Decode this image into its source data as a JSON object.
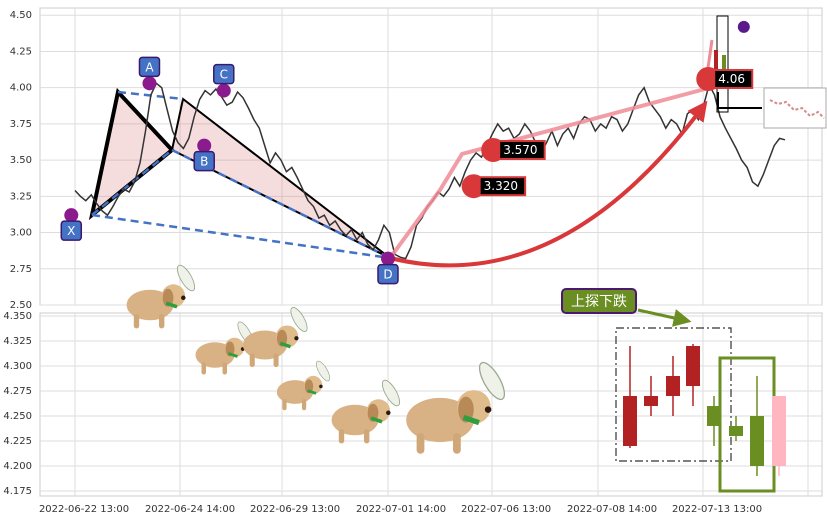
{
  "chart_data": [
    {
      "type": "line",
      "panel": "price",
      "grid": true,
      "y_ticks": [
        "4.50",
        "4.25",
        "4.00",
        "3.75",
        "3.50",
        "3.25",
        "3.00",
        "2.75",
        "2.50"
      ],
      "ylim": [
        2.5,
        4.55
      ],
      "x_ticks": [
        "2022-06-22 13:00",
        "2022-06-24 14:00",
        "2022-06-29 13:00",
        "2022-07-01 14:00",
        "2022-07-06 13:00",
        "2022-07-08 14:00",
        "2022-07-13 13:00"
      ],
      "series_line": {
        "color": "#333333",
        "y": [
          3.29,
          3.25,
          3.22,
          3.26,
          3.2,
          3.15,
          3.12,
          3.18,
          3.25,
          3.3,
          3.28,
          3.35,
          3.48,
          3.7,
          3.95,
          4.03,
          4.0,
          3.85,
          3.7,
          3.62,
          3.58,
          3.65,
          3.8,
          3.92,
          3.98,
          3.95,
          3.99,
          3.94,
          3.88,
          3.9,
          3.97,
          3.93,
          3.86,
          3.78,
          3.72,
          3.6,
          3.48,
          3.55,
          3.5,
          3.42,
          3.45,
          3.38,
          3.3,
          3.22,
          3.18,
          3.1,
          3.12,
          3.05,
          3.08,
          3.02,
          2.98,
          3.02,
          2.95,
          3.0,
          2.92,
          2.88,
          2.95,
          3.05,
          3.0,
          2.85,
          2.83,
          2.82,
          2.9,
          3.05,
          3.1,
          3.18,
          3.22,
          3.28,
          3.25,
          3.3,
          3.38,
          3.32,
          3.42,
          3.5,
          3.55,
          3.52,
          3.6,
          3.68,
          3.75,
          3.7,
          3.72,
          3.65,
          3.68,
          3.75,
          3.7,
          3.62,
          3.55,
          3.62,
          3.7,
          3.6,
          3.68,
          3.72,
          3.65,
          3.75,
          3.8,
          3.78,
          3.7,
          3.75,
          3.72,
          3.8,
          3.78,
          3.7,
          3.75,
          3.85,
          3.95,
          4.0,
          3.9,
          3.85,
          3.8,
          3.72,
          3.78,
          3.75,
          3.68,
          3.82,
          3.85,
          3.78,
          3.88,
          4.02,
          3.95,
          3.8,
          3.72,
          3.65,
          3.58,
          3.5,
          3.45,
          3.35,
          3.32,
          3.4,
          3.5,
          3.6,
          3.65,
          3.64
        ]
      },
      "pattern_points": [
        {
          "label": "X",
          "x": 0.04,
          "y": 3.12
        },
        {
          "label": "A",
          "x": 0.14,
          "y": 4.03
        },
        {
          "label": "B",
          "x": 0.21,
          "y": 3.6
        },
        {
          "label": "C",
          "x": 0.235,
          "y": 3.98
        },
        {
          "label": "D",
          "x": 0.445,
          "y": 2.82
        }
      ],
      "price_labels": [
        {
          "label": "3.320",
          "x": 0.575,
          "y": 3.32
        },
        {
          "label": "3.570",
          "x": 0.6,
          "y": 3.57
        },
        {
          "label": "4.06",
          "x": 0.875,
          "y": 4.06
        }
      ],
      "top_marker": {
        "x": 0.9,
        "y": 4.42
      }
    },
    {
      "type": "candlestick",
      "panel": "lower",
      "grid": true,
      "y_ticks": [
        "4.350",
        "4.325",
        "4.300",
        "4.275",
        "4.250",
        "4.225",
        "4.200",
        "4.175"
      ],
      "ylim": [
        4.17,
        4.353
      ],
      "annotation": "上探下跌",
      "candles": [
        {
          "o": 4.22,
          "h": 4.32,
          "l": 4.218,
          "c": 4.27,
          "color": "#b22222"
        },
        {
          "o": 4.26,
          "h": 4.29,
          "l": 4.25,
          "c": 4.27,
          "color": "#b22222"
        },
        {
          "o": 4.27,
          "h": 4.31,
          "l": 4.25,
          "c": 4.29,
          "color": "#b22222"
        },
        {
          "o": 4.28,
          "h": 4.322,
          "l": 4.26,
          "c": 4.32,
          "color": "#b22222"
        },
        {
          "o": 4.26,
          "h": 4.27,
          "l": 4.22,
          "c": 4.24,
          "color": "#6b8e23"
        },
        {
          "o": 4.24,
          "h": 4.25,
          "l": 4.225,
          "c": 4.23,
          "color": "#6b8e23"
        },
        {
          "o": 4.25,
          "h": 4.29,
          "l": 4.19,
          "c": 4.2,
          "color": "#6b8e23"
        },
        {
          "o": 4.2,
          "h": 4.27,
          "l": 4.19,
          "c": 4.27,
          "color": "#ffb6c1"
        }
      ]
    }
  ]
}
